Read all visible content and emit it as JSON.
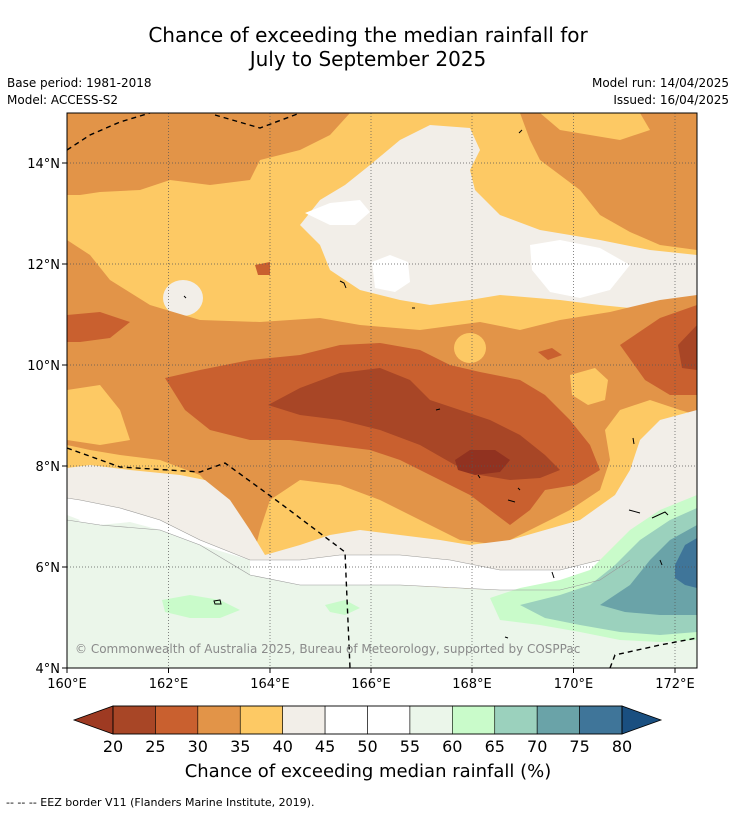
{
  "title": {
    "line1": "Chance of exceeding the median rainfall for",
    "line2": "July to September 2025"
  },
  "meta": {
    "base_period": "Base period: 1981-2018",
    "model": "Model: ACCESS-S2",
    "model_run": "Model run: 14/04/2025",
    "issued": "Issued: 16/04/2025"
  },
  "map": {
    "lon_ticks": [
      "160°E",
      "162°E",
      "164°E",
      "166°E",
      "168°E",
      "170°E",
      "172°E"
    ],
    "lat_ticks": [
      "14°N",
      "12°N",
      "10°N",
      "8°N",
      "6°N",
      "4°N"
    ],
    "lon_range": [
      160,
      172.5
    ],
    "lat_range": [
      4,
      15
    ],
    "copyright": "© Commonwealth of Australia 2025, Bureau of Meteorology, supported by COSPPac"
  },
  "colorbar": {
    "labels": [
      "20",
      "25",
      "30",
      "35",
      "40",
      "45",
      "50",
      "55",
      "60",
      "65",
      "70",
      "75",
      "80"
    ],
    "under_color": "#9e3a22",
    "over_color": "#1a4f80",
    "colors": [
      "#a84626",
      "#c9602f",
      "#e29448",
      "#fdc964",
      "#f2eee8",
      "#ffffff",
      "#ffffff",
      "#ebf6ea",
      "#c9fbca",
      "#9bd1bd",
      "#6aa3a8",
      "#3f7599"
    ],
    "title": "Chance of exceeding median rainfall (%)"
  },
  "footnote": "--  --  -- EEZ border V11 (Flanders Marine Institute, 2019)."
}
